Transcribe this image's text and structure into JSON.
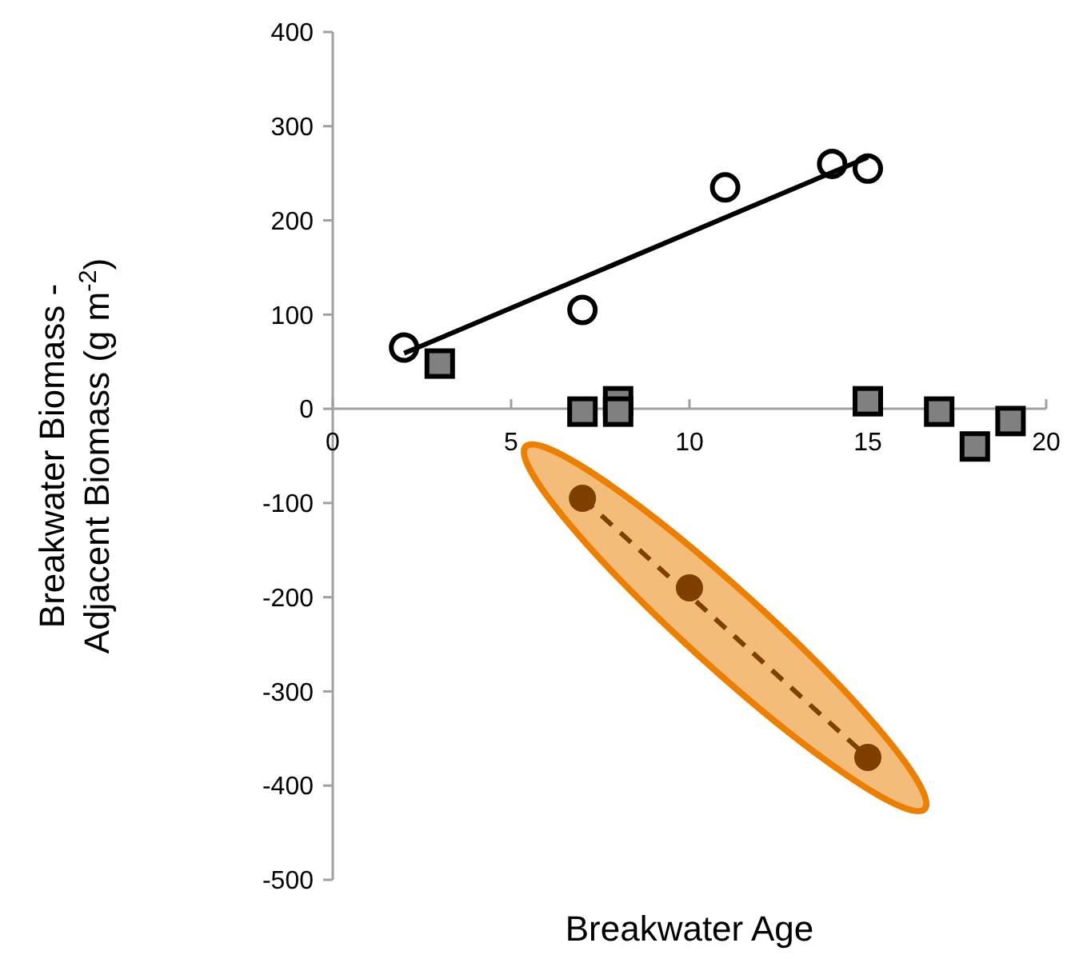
{
  "chart_data": {
    "type": "scatter",
    "xlabel": "Breakwater Age",
    "ylabel": "Breakwater Biomass - Adjacent Biomass (g m$^{-2}$)",
    "xlim": [
      0,
      20
    ],
    "xticks": [
      0,
      5,
      10,
      15,
      20
    ],
    "ylim": [
      -500,
      400
    ],
    "yticks": [
      -500,
      -400,
      -300,
      -200,
      -100,
      0,
      100,
      200,
      300,
      400
    ],
    "grid": false,
    "series": [
      {
        "color": "#000000",
        "marker": "circle",
        "x": [
          2,
          7,
          11,
          14,
          15
        ],
        "values": [
          65,
          105,
          235,
          260,
          255
        ]
      },
      {
        "type": "line",
        "color": "#000000",
        "marker": "none",
        "line_style": "solid",
        "x": [
          2,
          15
        ],
        "values": [
          59,
          267
        ]
      },
      {
        "color": "#808080",
        "marker": "square",
        "x": [
          3,
          7,
          8,
          8,
          15,
          17,
          18,
          19
        ],
        "values": [
          48,
          -3,
          8,
          -3,
          8,
          -3,
          -40,
          -13
        ]
      },
      {
        "color": "#7f3f00",
        "marker": "circle",
        "x": [
          7,
          10,
          15
        ],
        "values": [
          -95,
          -190,
          -370
        ]
      },
      {
        "type": "line",
        "color": "#7f3f00",
        "marker": "none",
        "line_style": "dashed",
        "x": [
          7,
          15
        ],
        "values": [
          -95,
          -370
        ]
      }
    ]
  }
}
